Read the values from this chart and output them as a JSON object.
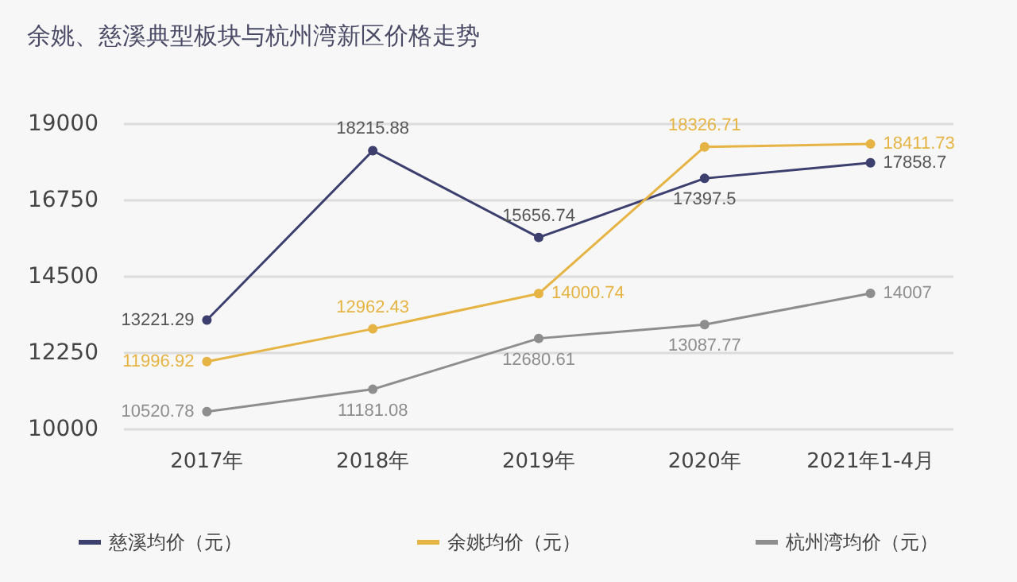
{
  "chart_data": {
    "type": "line",
    "title": "余姚、慈溪典型板块与杭州湾新区价格走势",
    "categories": [
      "2017年",
      "2018年",
      "2019年",
      "2020年",
      "2021年1-4月"
    ],
    "series": [
      {
        "name": "慈溪均价（元）",
        "color": "#3d3f6e",
        "values": [
          13221.29,
          18215.88,
          15656.74,
          17397.5,
          17858.7
        ]
      },
      {
        "name": "余姚均价（元）",
        "color": "#e6b445",
        "values": [
          11996.92,
          12962.43,
          14000.74,
          18326.71,
          18411.73
        ]
      },
      {
        "name": "杭州湾均价（元）",
        "color": "#8e8e8e",
        "values": [
          10520.78,
          11181.08,
          12680.61,
          13087.77,
          14007
        ]
      }
    ],
    "ylim": [
      10000,
      19000
    ],
    "yticks": [
      10000,
      12250,
      14500,
      16750,
      19000
    ],
    "grid": "y",
    "legend": "bottom",
    "marker": "circle",
    "line_style": "solid",
    "data_labels": true
  }
}
